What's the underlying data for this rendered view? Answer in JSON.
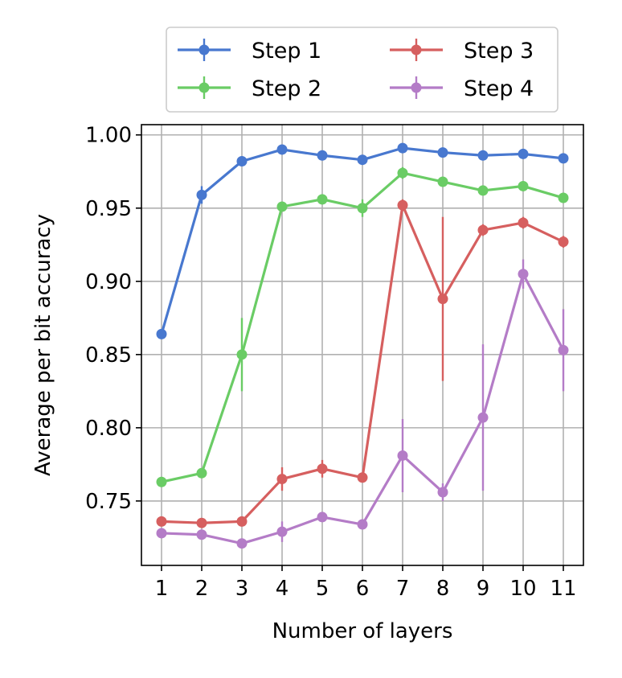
{
  "chart_data": {
    "type": "line",
    "title": "",
    "xlabel": "Number of layers",
    "ylabel": "Average per bit accuracy",
    "x": [
      1,
      2,
      3,
      4,
      5,
      6,
      7,
      8,
      9,
      10,
      11
    ],
    "xticks": [
      "1",
      "2",
      "3",
      "4",
      "5",
      "6",
      "7",
      "8",
      "9",
      "10",
      "11"
    ],
    "yticks": [
      "0.75",
      "0.80",
      "0.85",
      "0.90",
      "0.95",
      "1.00"
    ],
    "ytick_values": [
      0.75,
      0.8,
      0.85,
      0.9,
      0.95,
      1.0
    ],
    "xlim": [
      0.5,
      11.5
    ],
    "ylim": [
      0.706,
      1.007
    ],
    "grid": true,
    "error_bars": true,
    "legend": {
      "position": "top-center-outside",
      "columns": 2
    },
    "series": [
      {
        "name": "Step 1",
        "color": "#4878cf",
        "values": [
          0.864,
          0.959,
          0.982,
          0.99,
          0.986,
          0.983,
          0.991,
          0.988,
          0.986,
          0.987,
          0.984
        ],
        "errors": [
          0.002,
          0.006,
          0.002,
          0.001,
          0.002,
          0.002,
          0.001,
          0.001,
          0.002,
          0.001,
          0.002
        ]
      },
      {
        "name": "Step 2",
        "color": "#6acc65",
        "values": [
          0.763,
          0.769,
          0.85,
          0.951,
          0.956,
          0.95,
          0.974,
          0.968,
          0.962,
          0.965,
          0.957
        ],
        "errors": [
          0.002,
          0.003,
          0.025,
          0.003,
          0.003,
          0.006,
          0.004,
          0.003,
          0.003,
          0.003,
          0.003
        ]
      },
      {
        "name": "Step 3",
        "color": "#d65f5f",
        "values": [
          0.736,
          0.735,
          0.736,
          0.765,
          0.772,
          0.766,
          0.952,
          0.888,
          0.935,
          0.94,
          0.927
        ],
        "errors": [
          0.002,
          0.002,
          0.002,
          0.008,
          0.006,
          0.002,
          0.004,
          0.056,
          0.004,
          0.004,
          0.004
        ]
      },
      {
        "name": "Step 4",
        "color": "#b47cc7",
        "values": [
          0.728,
          0.727,
          0.721,
          0.729,
          0.739,
          0.734,
          0.781,
          0.756,
          0.807,
          0.905,
          0.853
        ],
        "errors": [
          0.002,
          0.002,
          0.002,
          0.007,
          0.003,
          0.003,
          0.025,
          0.006,
          0.05,
          0.01,
          0.028
        ]
      }
    ]
  }
}
